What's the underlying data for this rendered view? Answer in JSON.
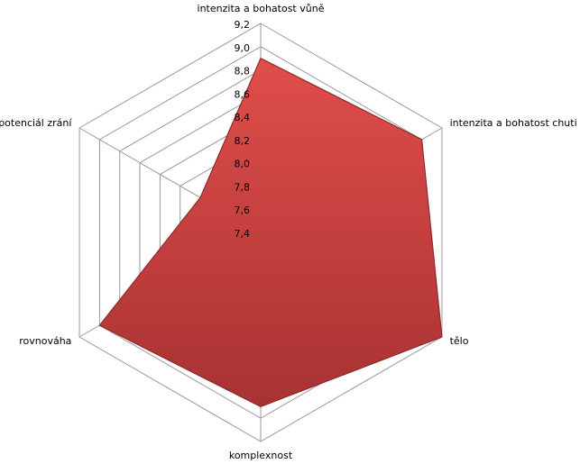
{
  "chart_data": {
    "type": "radar",
    "categories": [
      "intenzita a bohatost  vůně",
      "intenzita a bohatost  chuti",
      "tělo",
      "komplexnost",
      "rovnováha",
      "potenciál zrání"
    ],
    "values": [
      8.9,
      9.0,
      9.2,
      8.9,
      9.0,
      8.0
    ],
    "color": "#d24542",
    "rlim": [
      7.4,
      9.2
    ],
    "rticks": [
      {
        "value": 7.4,
        "label": "7,4"
      },
      {
        "value": 7.6,
        "label": "7,6"
      },
      {
        "value": 7.8,
        "label": "7,8"
      },
      {
        "value": 8.0,
        "label": "8,0"
      },
      {
        "value": 8.2,
        "label": "8,2"
      },
      {
        "value": 8.4,
        "label": "8,4"
      },
      {
        "value": 8.6,
        "label": "8,6"
      },
      {
        "value": 8.8,
        "label": "8,8"
      },
      {
        "value": 9.0,
        "label": "9,0"
      },
      {
        "value": 9.2,
        "label": "9,2"
      }
    ],
    "grid": true
  }
}
